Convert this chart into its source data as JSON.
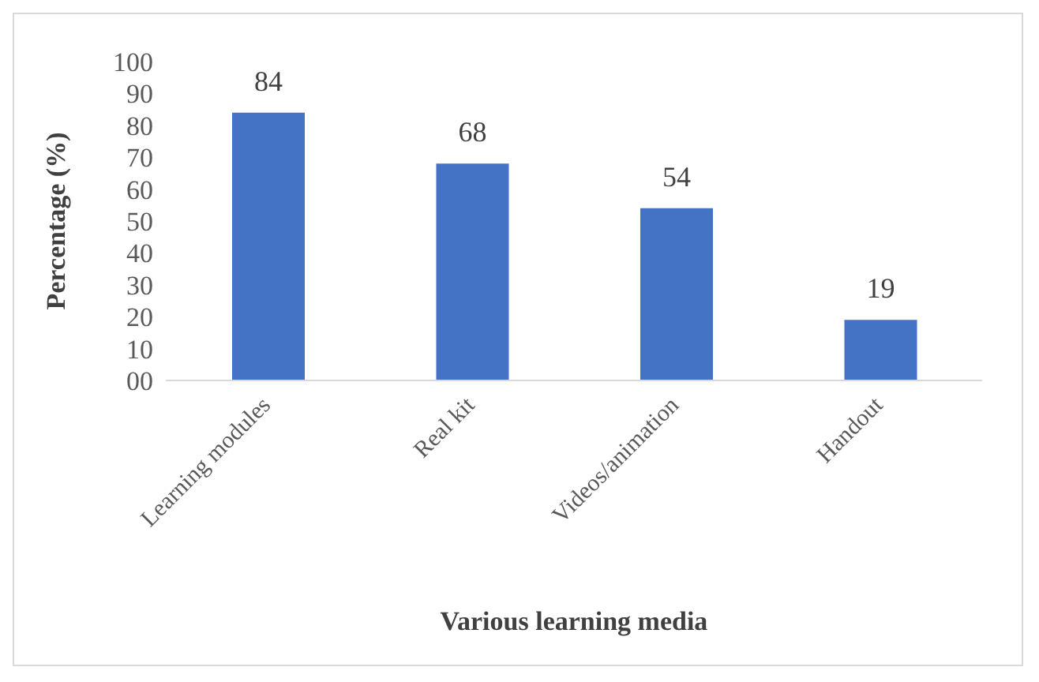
{
  "chart_data": {
    "type": "bar",
    "xlabel": "Various learning media",
    "ylabel": "Percentage (%)",
    "categories": [
      "Learning modules",
      "Real kit",
      "Videos/animation",
      "Handout"
    ],
    "values": [
      84,
      68,
      54,
      19
    ],
    "color": "#4472c4",
    "ylim": [
      0,
      100
    ],
    "yticks": [
      {
        "value": 0,
        "label": "00"
      },
      10,
      20,
      30,
      40,
      50,
      60,
      70,
      80,
      90,
      100
    ],
    "data_labels": true,
    "grid": false
  }
}
